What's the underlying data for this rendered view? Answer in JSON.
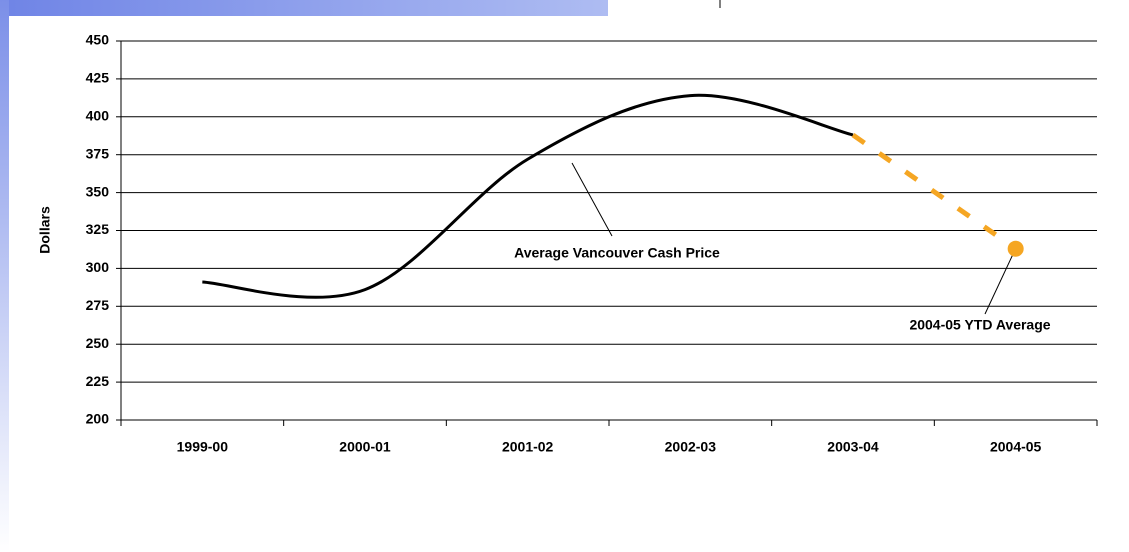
{
  "chart_data": {
    "type": "line",
    "categories": [
      "1999-00",
      "2000-01",
      "2001-02",
      "2002-03",
      "2003-04",
      "2004-05"
    ],
    "series": [
      {
        "name": "Average Vancouver Cash Price",
        "color": "#000000",
        "values": [
          291,
          286,
          372,
          414,
          388,
          null
        ]
      },
      {
        "name": "2004-05 YTD Average",
        "color": "#f5a623",
        "dashed": true,
        "values": [
          null,
          null,
          null,
          null,
          388,
          313
        ]
      }
    ],
    "ylabel": "Dollars",
    "ylim": [
      200,
      450
    ],
    "yticks": [
      200,
      225,
      250,
      275,
      300,
      325,
      350,
      375,
      400,
      425,
      450
    ],
    "grid": true
  }
}
